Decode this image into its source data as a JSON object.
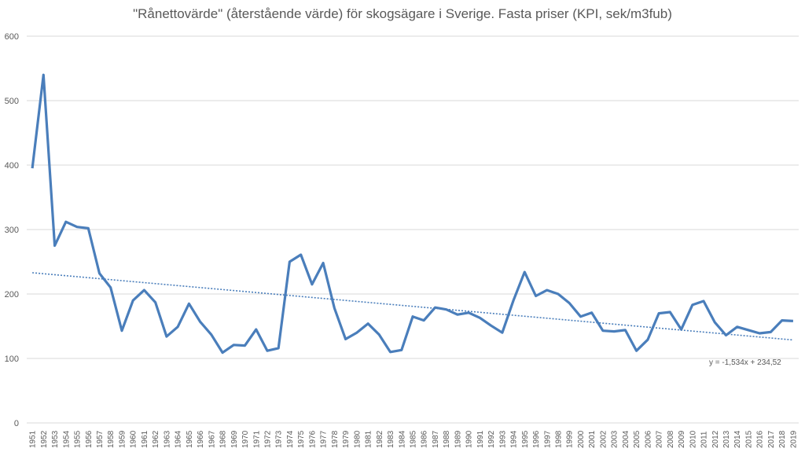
{
  "chart_data": {
    "type": "line",
    "title": "\"Rånettovärde\" (återstående värde) för skogsägare i Sverige. Fasta priser (KPI, sek/m3fub)",
    "xlabel": "",
    "ylabel": "",
    "ylim": [
      0,
      600
    ],
    "yticks": [
      0,
      100,
      200,
      300,
      400,
      500,
      600
    ],
    "grid": true,
    "legend": "none",
    "x": [
      1951,
      1952,
      1953,
      1954,
      1955,
      1956,
      1957,
      1958,
      1959,
      1960,
      1961,
      1962,
      1963,
      1964,
      1965,
      1966,
      1967,
      1968,
      1969,
      1970,
      1971,
      1972,
      1973,
      1974,
      1975,
      1976,
      1977,
      1978,
      1979,
      1980,
      1981,
      1982,
      1983,
      1984,
      1985,
      1986,
      1987,
      1988,
      1989,
      1990,
      1991,
      1992,
      1993,
      1994,
      1995,
      1996,
      1997,
      1998,
      1999,
      2000,
      2001,
      2002,
      2003,
      2004,
      2005,
      2006,
      2007,
      2008,
      2009,
      2010,
      2011,
      2012,
      2013,
      2014,
      2015,
      2016,
      2017,
      2018,
      2019
    ],
    "series": [
      {
        "name": "Rånettovärde",
        "color": "#4a7ebb",
        "values": [
          395,
          540,
          275,
          312,
          304,
          302,
          232,
          210,
          143,
          190,
          206,
          187,
          134,
          149,
          185,
          157,
          137,
          109,
          121,
          120,
          145,
          112,
          116,
          250,
          261,
          215,
          248,
          178,
          130,
          140,
          154,
          137,
          110,
          113,
          165,
          159,
          179,
          176,
          168,
          171,
          163,
          151,
          140,
          190,
          234,
          197,
          206,
          200,
          186,
          165,
          171,
          143,
          142,
          144,
          112,
          129,
          170,
          172,
          145,
          183,
          189,
          156,
          136,
          149,
          144,
          139,
          141,
          159,
          158
        ]
      }
    ],
    "trendline": {
      "type": "linear",
      "style": "dotted",
      "color": "#4a7ebb",
      "slope": -1.534,
      "intercept": 234.52,
      "label": "y = -1,534x + 234,52"
    }
  }
}
